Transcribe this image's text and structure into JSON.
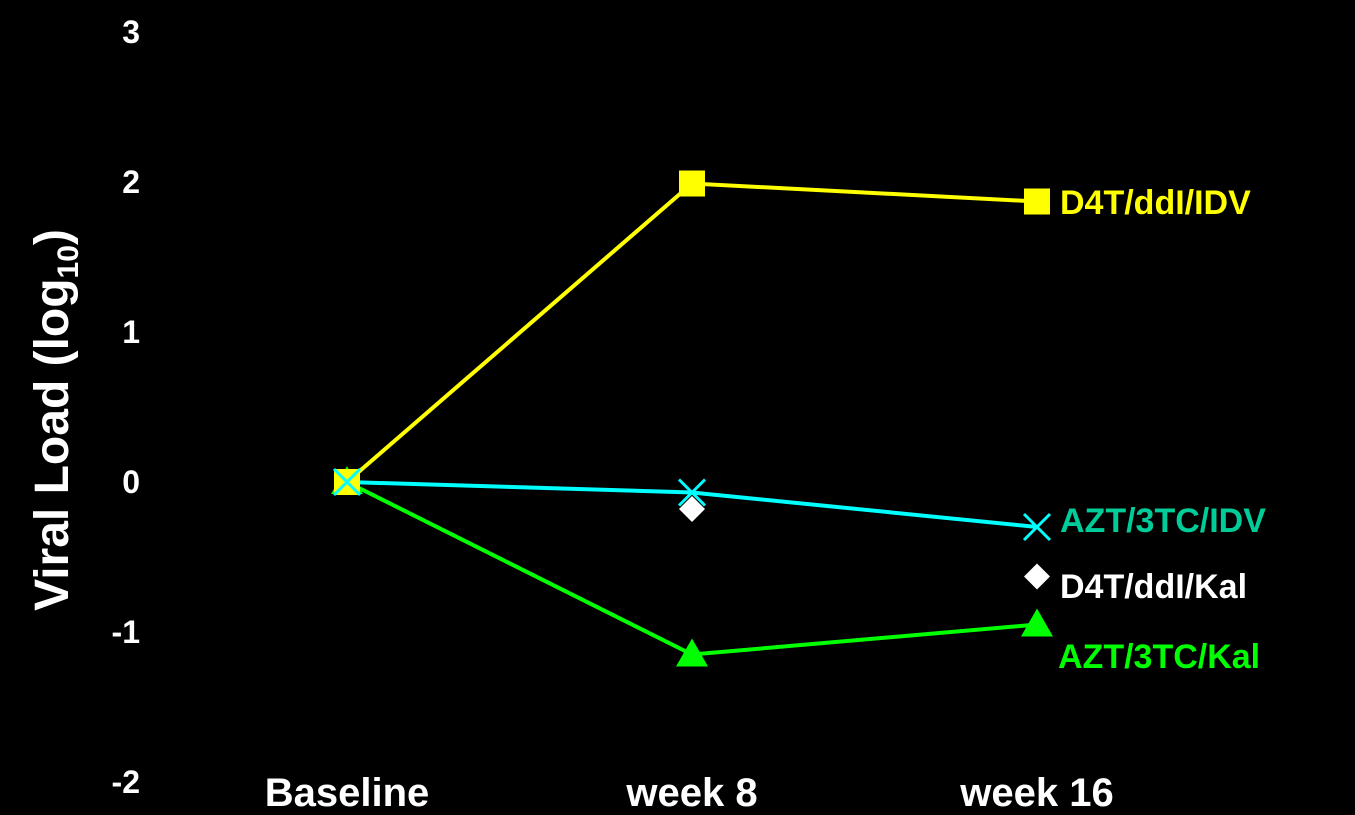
{
  "chart_data": {
    "type": "line",
    "categories": [
      "Baseline",
      "week 8",
      "week 16"
    ],
    "ylabel": {
      "prefix": "Viral Load (log",
      "subscript": "10",
      "suffix": ")"
    },
    "ylim": [
      -2,
      3
    ],
    "yticks": [
      "3",
      "2",
      "1",
      "0",
      "-1",
      "-2"
    ],
    "ytick_values": [
      3,
      2,
      1,
      0,
      -1,
      -2
    ],
    "grid": false,
    "series": [
      {
        "name": "D4T/ddI/IDV",
        "values": [
          0,
          1.99,
          1.87
        ],
        "color": "#FFFF00",
        "label_color": "#FFFF00",
        "marker": "square",
        "line": true
      },
      {
        "name": "AZT/3TC/IDV",
        "values": [
          0,
          -0.07,
          -0.3
        ],
        "color": "#00FFFF",
        "label_color": "#00CC99",
        "marker": "x",
        "line": true
      },
      {
        "name": "D4T/ddI/Kal",
        "values": [
          0,
          -0.18,
          -0.63
        ],
        "color": "#FFFFFF",
        "label_color": "#FFFFFF",
        "marker": "diamond",
        "line": false
      },
      {
        "name": "AZT/3TC/Kal",
        "values": [
          0,
          -1.15,
          -0.95
        ],
        "color": "#00FF00",
        "label_color": "#00FF00",
        "marker": "triangle",
        "line": true
      }
    ]
  }
}
